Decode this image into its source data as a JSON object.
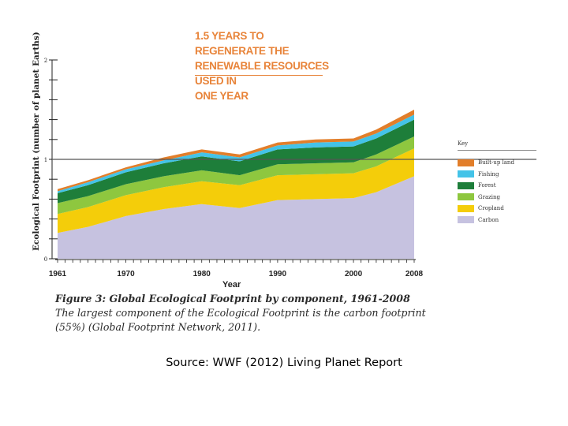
{
  "headline": [
    "1.5 YEARS TO REGENERATE THE",
    "RENEWABLE RESOURCES USED IN",
    "ONE YEAR"
  ],
  "source": "Source: WWF (2012) Living Planet Report",
  "caption": {
    "bold": "Figure 3: Global Ecological Footprint by component, 1961-2008",
    "rest": " The largest component of the Ecological Footprint is the carbon footprint (55%) (Global Footprint Network, 2011)."
  },
  "colors": {
    "carbon": "#c6c2e0",
    "cropland": "#f4cd0a",
    "grazing": "#8ec73f",
    "forest": "#1e7e3a",
    "fishing": "#44c3e8",
    "builtup": "#e27e2a",
    "headline": "#e8843a",
    "reference_line": "#555555"
  },
  "chart_data": {
    "type": "area",
    "stacked": true,
    "title": "",
    "xlabel": "Year",
    "ylabel": "Ecological Footprint (number of planet Earths)",
    "xlim": [
      1961,
      2008
    ],
    "ylim": [
      0,
      2
    ],
    "x_ticks": [
      "1961",
      "1970",
      "1980",
      "1990",
      "2000",
      "2008"
    ],
    "y_ticks": [
      "0",
      "1",
      "2"
    ],
    "reference_line": 1,
    "legend_title": "Key",
    "legend_position": "right",
    "x": [
      1961,
      1965,
      1970,
      1975,
      1980,
      1985,
      1990,
      1995,
      2000,
      2003,
      2008
    ],
    "series": [
      {
        "name": "Carbon",
        "color_key": "carbon",
        "values": [
          0.26,
          0.32,
          0.43,
          0.5,
          0.55,
          0.51,
          0.59,
          0.6,
          0.61,
          0.67,
          0.83
        ]
      },
      {
        "name": "Cropland",
        "color_key": "cropland",
        "values": [
          0.19,
          0.2,
          0.21,
          0.22,
          0.23,
          0.23,
          0.25,
          0.25,
          0.25,
          0.26,
          0.28
        ]
      },
      {
        "name": "Grazing",
        "color_key": "grazing",
        "values": [
          0.11,
          0.11,
          0.11,
          0.11,
          0.11,
          0.1,
          0.11,
          0.11,
          0.11,
          0.12,
          0.12
        ]
      },
      {
        "name": "Forest",
        "color_key": "forest",
        "values": [
          0.1,
          0.11,
          0.12,
          0.13,
          0.14,
          0.14,
          0.15,
          0.16,
          0.16,
          0.16,
          0.17
        ]
      },
      {
        "name": "Fishing",
        "color_key": "fishing",
        "values": [
          0.02,
          0.03,
          0.03,
          0.03,
          0.04,
          0.04,
          0.04,
          0.05,
          0.05,
          0.05,
          0.05
        ]
      },
      {
        "name": "Built-up land",
        "color_key": "builtup",
        "values": [
          0.02,
          0.02,
          0.02,
          0.03,
          0.03,
          0.03,
          0.03,
          0.03,
          0.03,
          0.04,
          0.05
        ]
      }
    ]
  }
}
